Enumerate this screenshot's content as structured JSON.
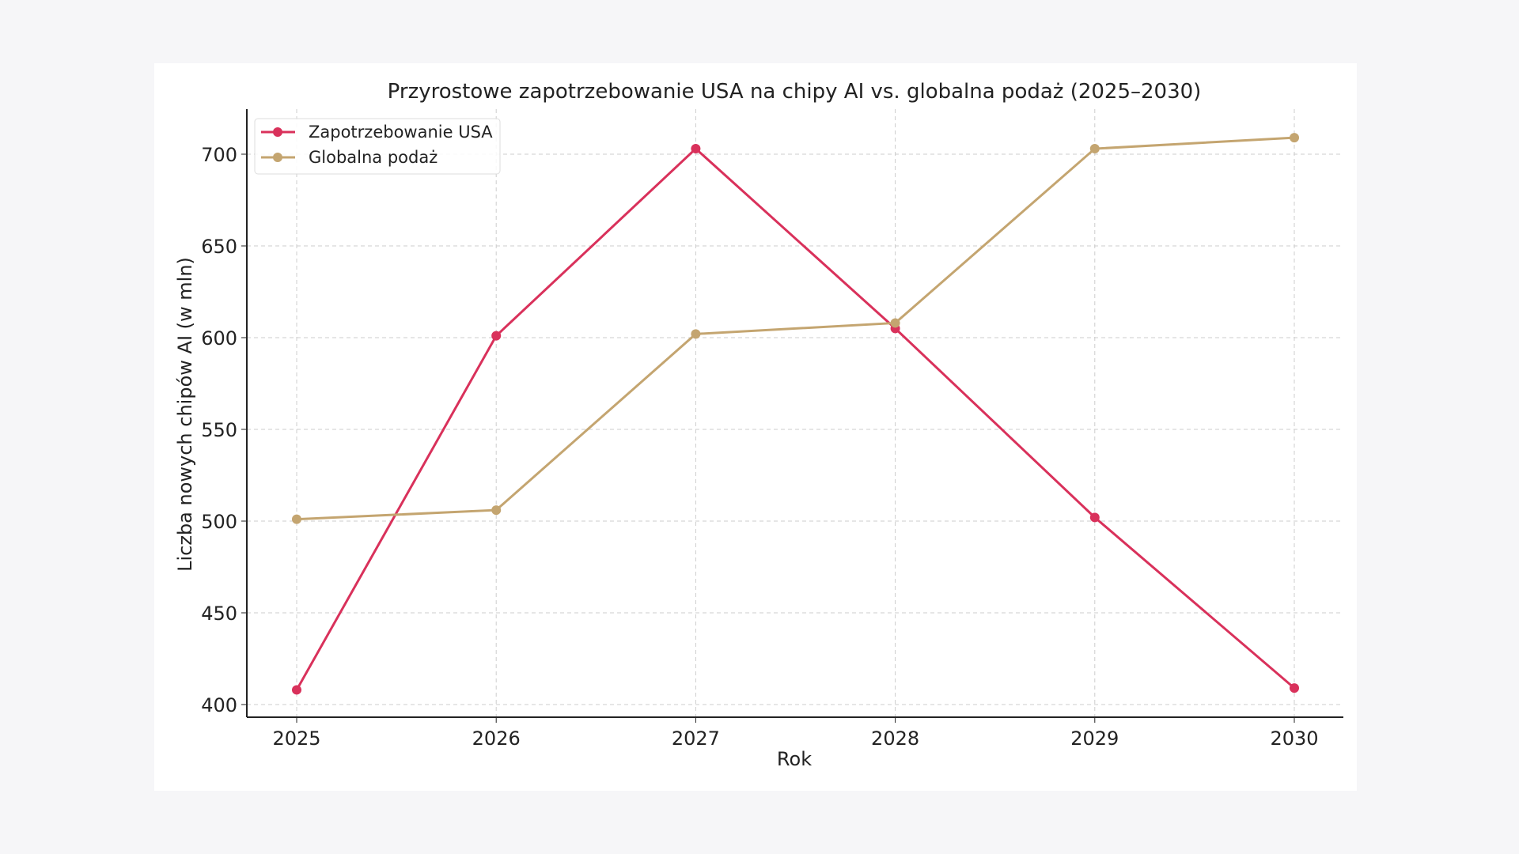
{
  "chart_data": {
    "type": "line",
    "title": "Przyrostowe zapotrzebowanie USA na chipy AI vs. globalna podaż (2025–2030)",
    "xlabel": "Rok",
    "ylabel": "Liczba nowych chipów AI (w mln)",
    "x": [
      2025,
      2026,
      2027,
      2028,
      2029,
      2030
    ],
    "xticks": [
      "2025",
      "2026",
      "2027",
      "2028",
      "2029",
      "2030"
    ],
    "yticks": [
      "400",
      "450",
      "500",
      "550",
      "600",
      "650",
      "700"
    ],
    "ylim": [
      393,
      723
    ],
    "grid": true,
    "legend_position": "top-left",
    "series": [
      {
        "name": "Zapotrzebowanie USA",
        "color": "#d9315b",
        "values": [
          408,
          601,
          703,
          605,
          502,
          409
        ]
      },
      {
        "name": "Globalna podaż",
        "color": "#c4a570",
        "values": [
          501,
          506,
          602,
          608,
          703,
          709
        ]
      }
    ]
  }
}
